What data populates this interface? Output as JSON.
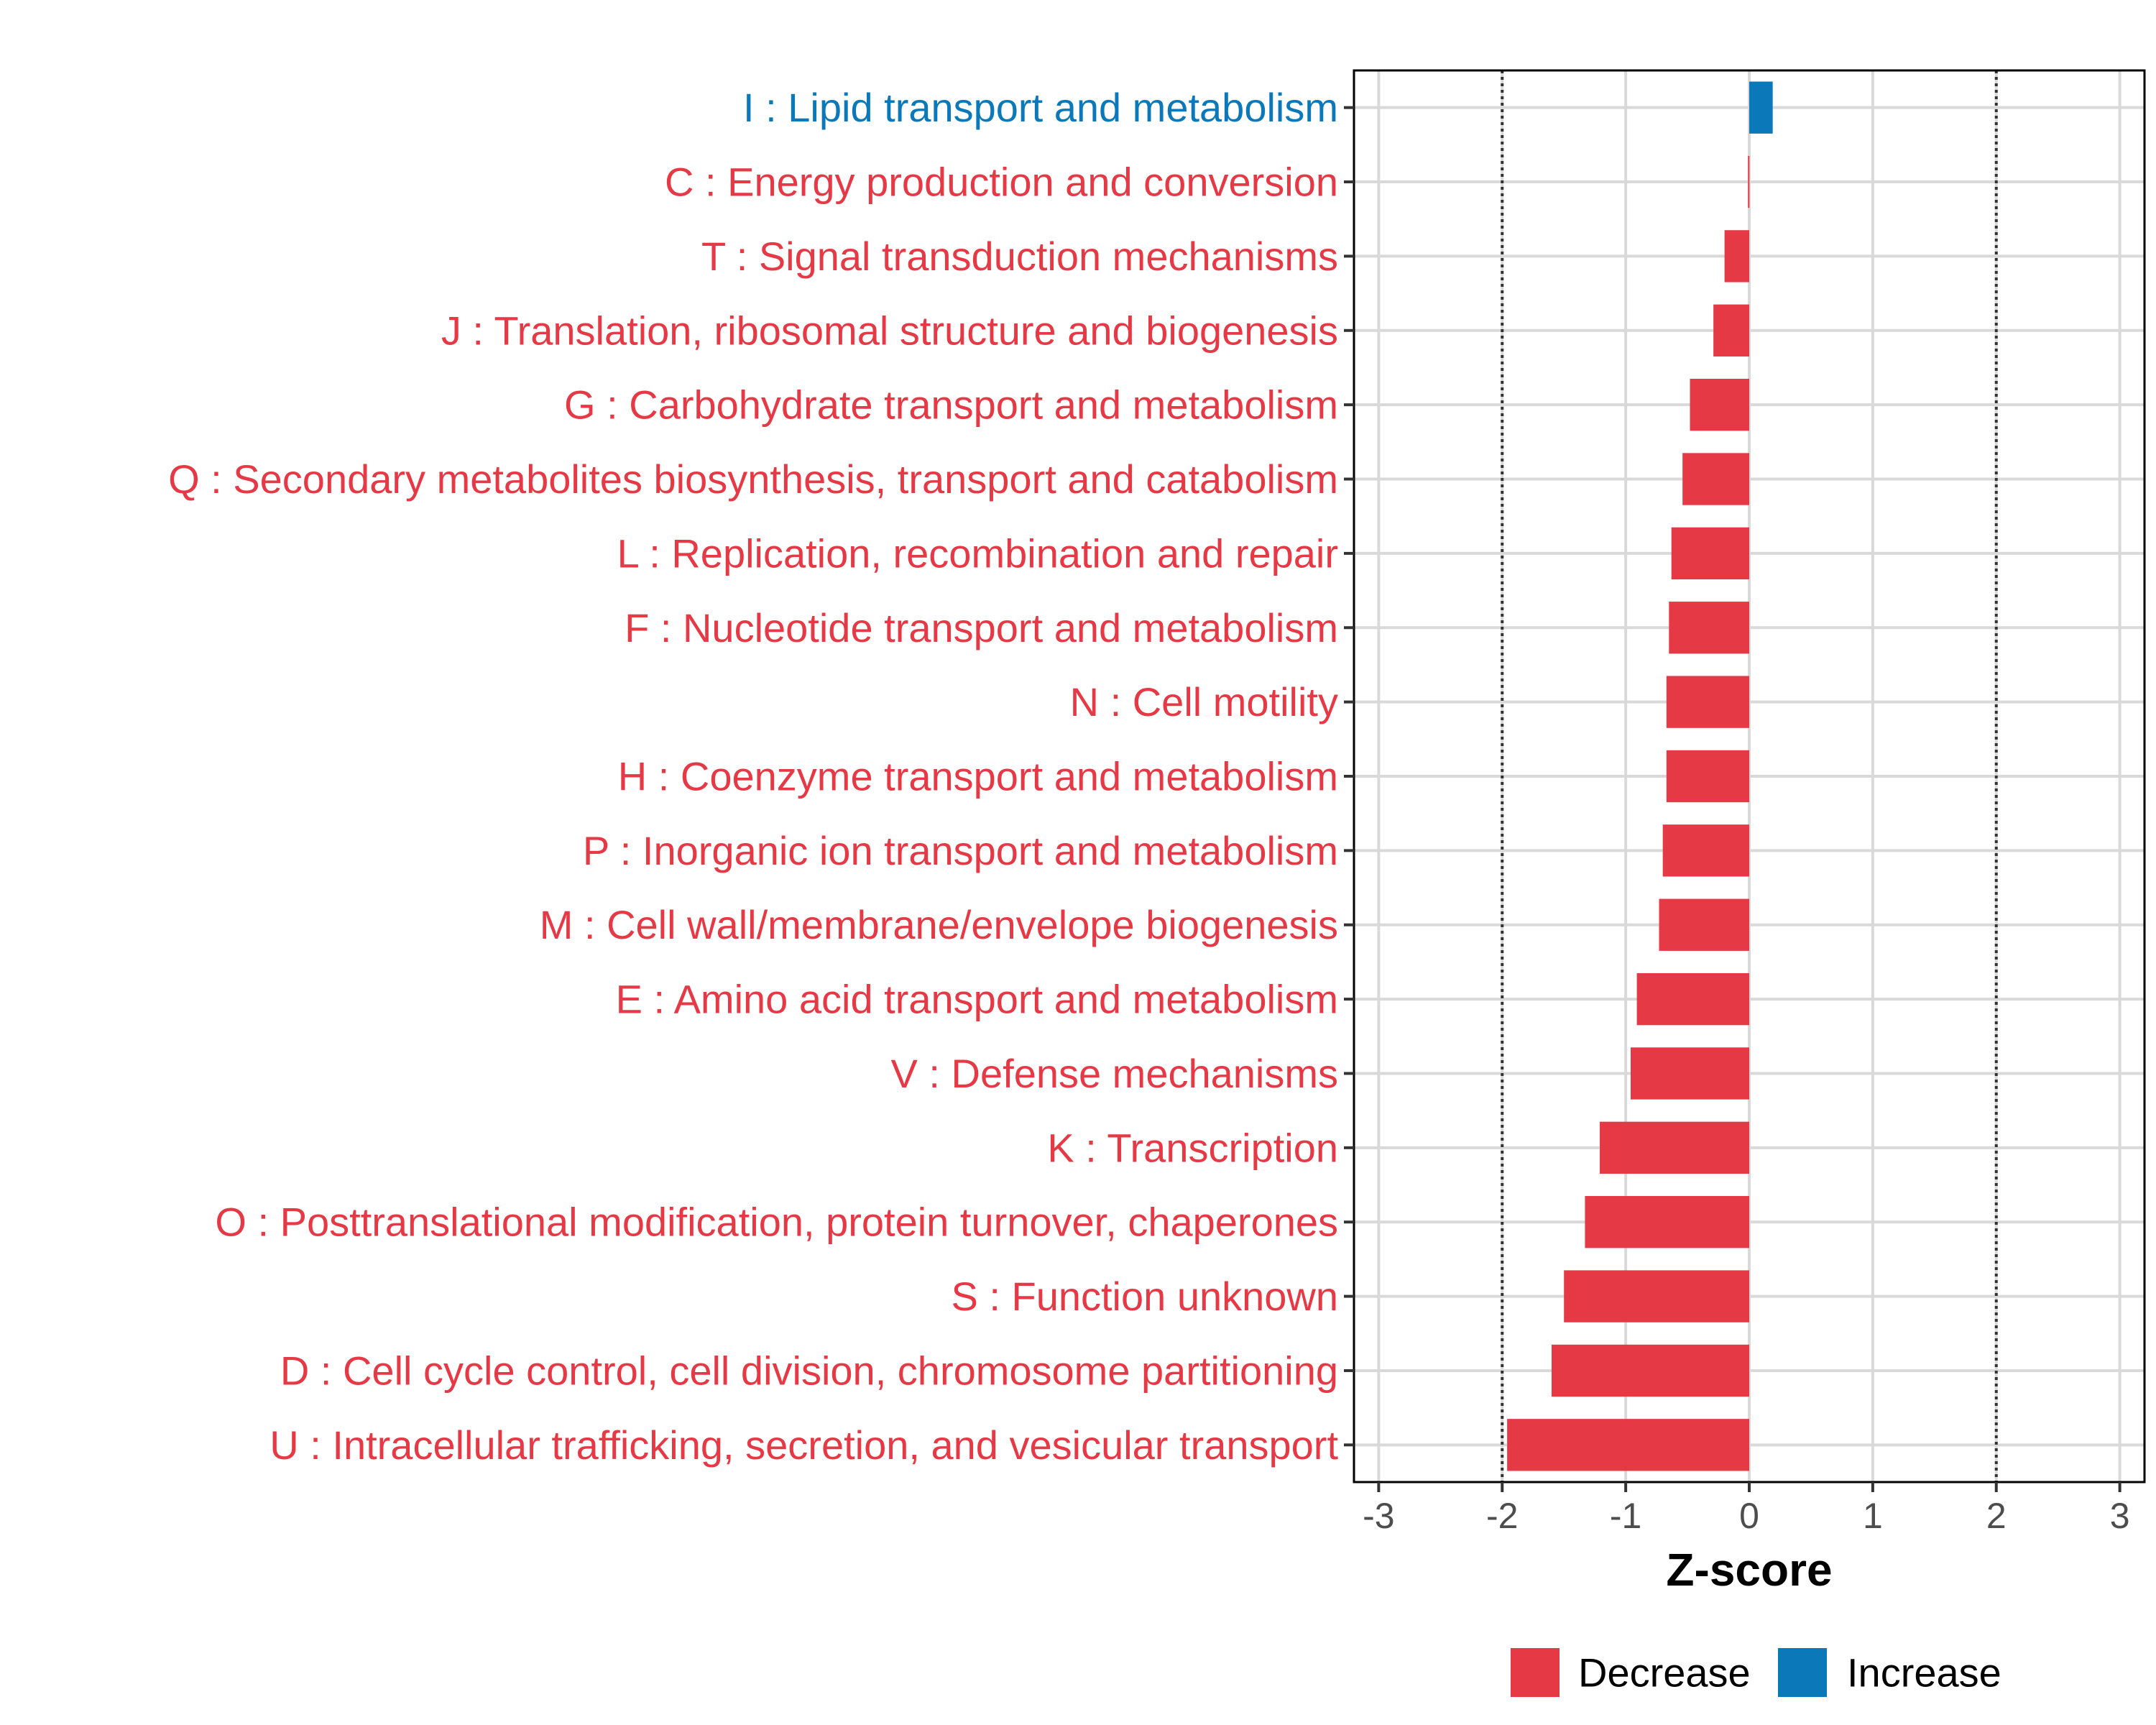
{
  "chart_data": {
    "type": "bar",
    "orientation": "horizontal",
    "title": "",
    "xlabel": "Z-score",
    "ylabel": "",
    "xlim": [
      -3.2,
      3.2
    ],
    "xticks": [
      -3,
      -2,
      -1,
      0,
      1,
      2,
      3
    ],
    "xtick_labels": [
      "-3",
      "-2",
      "-1",
      "0",
      "1",
      "2",
      "3"
    ],
    "reference_lines": [
      -2,
      2
    ],
    "grid": true,
    "legend_position": "bottom",
    "colors": {
      "Decrease": "#e63946",
      "Increase": "#0a78b9"
    },
    "categories": [
      "I : Lipid transport and metabolism",
      "C : Energy production and conversion",
      "T : Signal transduction mechanisms",
      "J : Translation, ribosomal structure and biogenesis",
      "G : Carbohydrate transport and metabolism",
      "Q : Secondary metabolites biosynthesis, transport and catabolism",
      "L : Replication, recombination and repair",
      "F : Nucleotide transport and metabolism",
      "N : Cell motility",
      "H : Coenzyme transport and metabolism",
      "P : Inorganic ion transport and metabolism",
      "M : Cell wall/membrane/envelope biogenesis",
      "E : Amino acid transport and metabolism",
      "V : Defense mechanisms",
      "K : Transcription",
      "O : Posttranslational modification, protein turnover, chaperones",
      "S : Function unknown",
      "D : Cell cycle control, cell division, chromosome partitioning",
      "U : Intracellular trafficking, secretion, and vesicular transport"
    ],
    "values": [
      0.19,
      -0.01,
      -0.2,
      -0.29,
      -0.48,
      -0.54,
      -0.63,
      -0.65,
      -0.67,
      -0.67,
      -0.7,
      -0.73,
      -0.91,
      -0.96,
      -1.21,
      -1.33,
      -1.5,
      -1.6,
      -1.96
    ],
    "groups": [
      "Increase",
      "Decrease",
      "Decrease",
      "Decrease",
      "Decrease",
      "Decrease",
      "Decrease",
      "Decrease",
      "Decrease",
      "Decrease",
      "Decrease",
      "Decrease",
      "Decrease",
      "Decrease",
      "Decrease",
      "Decrease",
      "Decrease",
      "Decrease",
      "Decrease"
    ],
    "legend": [
      "Decrease",
      "Increase"
    ]
  }
}
